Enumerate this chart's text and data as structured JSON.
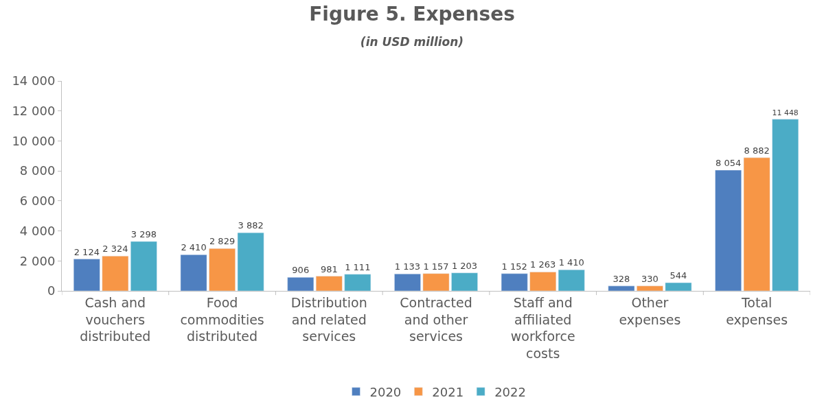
{
  "chart_data": {
    "type": "bar",
    "title": "Figure 5. Expenses",
    "subtitle": "(in USD million)",
    "categories": [
      "Cash and vouchers distributed",
      "Food commodities distributed",
      "Distribution and related services",
      "Contracted and other services",
      "Staff and affiliated workforce costs",
      "Other expenses",
      "Total expenses"
    ],
    "series": [
      {
        "name": "2020",
        "color": "#4f7fbf",
        "values": [
          2124,
          2410,
          906,
          1133,
          1152,
          328,
          8054
        ],
        "value_labels": [
          "2 124",
          "2 410",
          "906",
          "1 133",
          "1 152",
          "328",
          "8 054"
        ]
      },
      {
        "name": "2021",
        "color": "#f79646",
        "values": [
          2324,
          2829,
          981,
          1157,
          1263,
          330,
          8882
        ],
        "value_labels": [
          "2 324",
          "2 829",
          "981",
          "1 157",
          "1 263",
          "330",
          "8 882"
        ]
      },
      {
        "name": "2022",
        "color": "#4bacc6",
        "values": [
          3298,
          3882,
          1111,
          1203,
          1410,
          544,
          11448
        ],
        "value_labels": [
          "3 298",
          "3 882",
          "1 111",
          "1 203",
          "1 410",
          "544",
          "11 448"
        ]
      }
    ],
    "ylim": [
      0,
      14000
    ],
    "yticks": [
      {
        "value": 0,
        "label": "0"
      },
      {
        "value": 2000,
        "label": "2 000"
      },
      {
        "value": 4000,
        "label": "4 000"
      },
      {
        "value": 6000,
        "label": "6 000"
      },
      {
        "value": 8000,
        "label": "8 000"
      },
      {
        "value": 10000,
        "label": "10 000"
      },
      {
        "value": 12000,
        "label": "12 000"
      },
      {
        "value": 14000,
        "label": "14 000"
      }
    ],
    "legend": "bottom",
    "grid": false
  }
}
